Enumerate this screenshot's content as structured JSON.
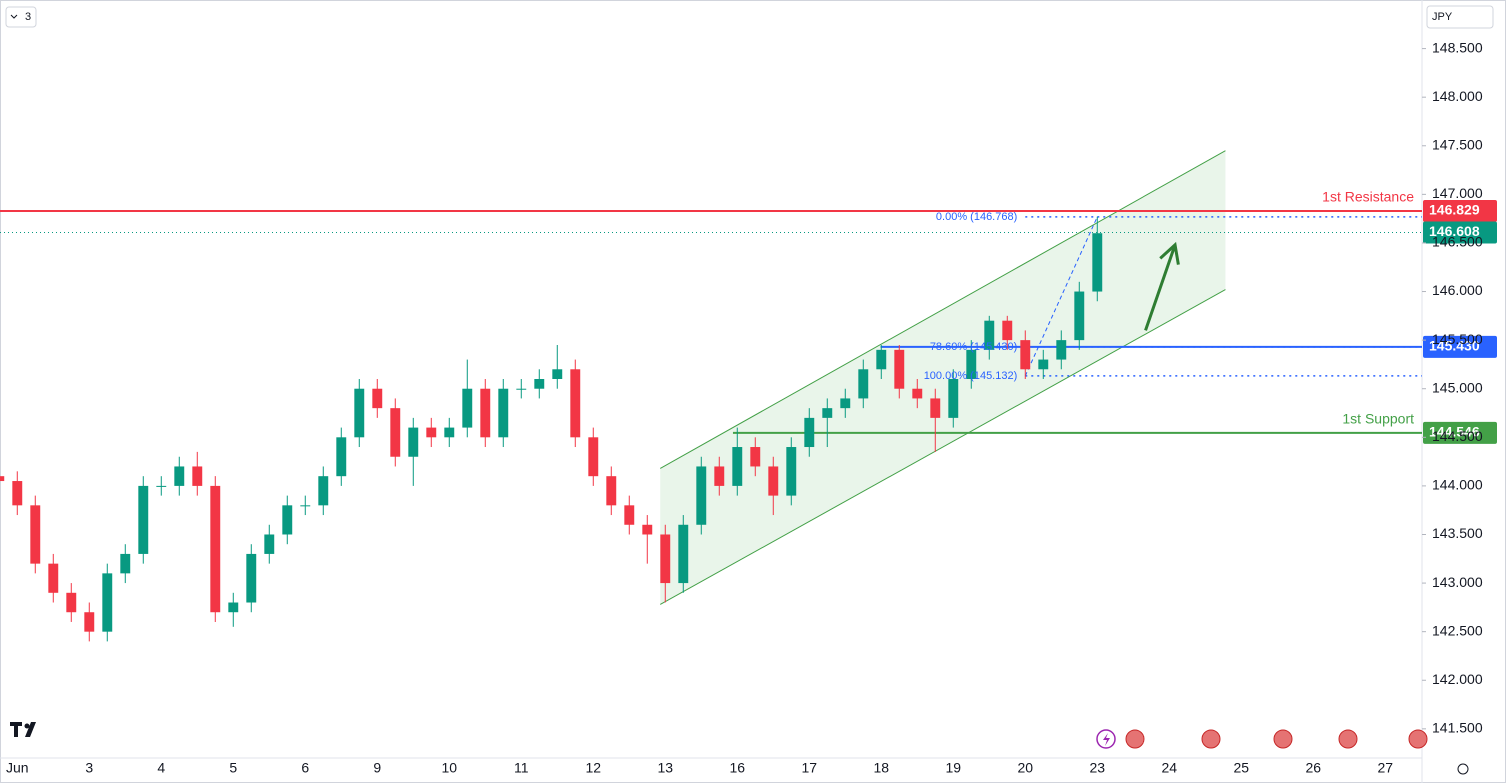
{
  "chart_data": {
    "type": "candlestick",
    "interval": "3",
    "currency": "JPY",
    "categories": [
      "Jun",
      "3",
      "4",
      "5",
      "6",
      "9",
      "10",
      "11",
      "12",
      "13",
      "16",
      "17",
      "18",
      "19",
      "20",
      "23",
      "24",
      "25",
      "26",
      "27"
    ],
    "xlim": [
      -0.24,
      19.51
    ],
    "ylim": [
      141.2,
      149.0
    ],
    "yticks": [
      {
        "value": 141.5,
        "label": "141.500"
      },
      {
        "value": 142,
        "label": "142.000"
      },
      {
        "value": 142.5,
        "label": "142.500"
      },
      {
        "value": 143,
        "label": "143.000"
      },
      {
        "value": 143.5,
        "label": "143.500"
      },
      {
        "value": 144,
        "label": "144.000"
      },
      {
        "value": 144.5,
        "label": "144.500"
      },
      {
        "value": 145,
        "label": "145.000"
      },
      {
        "value": 145.5,
        "label": "145.500"
      },
      {
        "value": 146,
        "label": "146.000"
      },
      {
        "value": 146.5,
        "label": "146.500"
      },
      {
        "value": 147,
        "label": "147.000"
      },
      {
        "value": 147.5,
        "label": "147.500"
      },
      {
        "value": 148,
        "label": "148.000"
      },
      {
        "value": 148.5,
        "label": "148.500"
      }
    ],
    "up_color": "#089981",
    "down_color": "#f23645",
    "candles": {
      "x": [
        -0.25,
        0,
        0.25,
        0.5,
        0.75,
        1,
        1.25,
        1.5,
        1.75,
        2,
        2.25,
        2.5,
        2.75,
        3,
        3.25,
        3.5,
        3.75,
        4,
        4.25,
        4.5,
        4.75,
        5,
        5.25,
        5.5,
        5.75,
        6,
        6.25,
        6.5,
        6.75,
        7,
        7.25,
        7.5,
        7.75,
        8,
        8.25,
        8.5,
        8.75,
        9,
        9.25,
        9.5,
        9.75,
        10,
        10.25,
        10.5,
        10.75,
        11,
        11.25,
        11.5,
        11.75,
        12,
        12.25,
        12.5,
        12.75,
        13,
        13.25,
        13.5,
        13.75,
        14,
        14.25,
        14.5,
        14.75,
        15
      ],
      "open": [
        144.1,
        144.05,
        143.8,
        143.2,
        142.9,
        142.7,
        142.5,
        143.1,
        143.3,
        144.0,
        144.0,
        144.2,
        144.0,
        142.7,
        142.8,
        143.3,
        143.5,
        143.8,
        143.8,
        144.1,
        144.5,
        145.0,
        144.8,
        144.3,
        144.6,
        144.5,
        144.6,
        145.0,
        144.5,
        145.0,
        145.0,
        145.1,
        145.2,
        144.5,
        144.1,
        143.8,
        143.6,
        143.5,
        143.0,
        143.6,
        144.2,
        144.0,
        144.4,
        144.2,
        143.9,
        144.4,
        144.7,
        144.8,
        144.9,
        145.2,
        145.4,
        145.0,
        144.9,
        144.7,
        145.1,
        145.4,
        145.7,
        145.5,
        145.2,
        145.3,
        145.5,
        146.0
      ],
      "high": [
        144.2,
        144.15,
        143.9,
        143.3,
        143.0,
        142.8,
        143.2,
        143.4,
        144.1,
        144.1,
        144.3,
        144.35,
        144.1,
        142.9,
        143.4,
        143.6,
        143.9,
        143.9,
        144.2,
        144.6,
        145.1,
        145.1,
        144.9,
        144.7,
        144.7,
        144.7,
        145.3,
        145.1,
        145.1,
        145.1,
        145.2,
        145.45,
        145.3,
        144.6,
        144.2,
        143.9,
        143.7,
        143.6,
        143.7,
        144.3,
        144.3,
        144.6,
        144.5,
        144.3,
        144.5,
        144.8,
        144.9,
        145.0,
        145.3,
        145.45,
        145.45,
        145.1,
        145.0,
        145.2,
        145.5,
        145.75,
        145.75,
        145.6,
        145.4,
        145.6,
        146.1,
        146.77
      ],
      "low": [
        143.95,
        143.7,
        143.1,
        142.8,
        142.6,
        142.4,
        142.4,
        143.0,
        143.2,
        143.9,
        143.9,
        143.9,
        142.6,
        142.55,
        142.7,
        143.2,
        143.4,
        143.7,
        143.7,
        144.0,
        144.4,
        144.7,
        144.2,
        144.0,
        144.4,
        144.4,
        144.5,
        144.4,
        144.4,
        144.9,
        144.9,
        145.0,
        144.4,
        144.0,
        143.7,
        143.5,
        143.2,
        142.8,
        142.9,
        143.5,
        143.9,
        143.9,
        144.1,
        143.7,
        143.8,
        144.3,
        144.4,
        144.7,
        144.8,
        145.1,
        144.9,
        144.8,
        144.35,
        144.6,
        145.0,
        145.3,
        145.4,
        145.1,
        145.1,
        145.2,
        145.4,
        145.9
      ],
      "close": [
        144.05,
        143.8,
        143.2,
        142.9,
        142.7,
        142.5,
        143.1,
        143.3,
        144.0,
        144.0,
        144.2,
        144.0,
        142.7,
        142.8,
        143.3,
        143.5,
        143.8,
        143.8,
        144.1,
        144.5,
        145.0,
        144.8,
        144.3,
        144.6,
        144.5,
        144.6,
        145.0,
        144.5,
        145.0,
        145.0,
        145.1,
        145.2,
        144.5,
        144.1,
        143.8,
        143.6,
        143.5,
        143.0,
        143.6,
        144.2,
        144.0,
        144.4,
        144.2,
        143.9,
        144.4,
        144.7,
        144.8,
        144.9,
        145.2,
        145.4,
        145.0,
        144.9,
        144.7,
        145.1,
        145.4,
        145.7,
        145.5,
        145.2,
        145.3,
        145.5,
        146.0,
        146.6
      ]
    },
    "levels": [
      {
        "name": "1st Resistance",
        "value": 146.829,
        "label": "146.829",
        "color": "#f23645",
        "start": -0.24
      },
      {
        "name": "1st Support",
        "value": 144.546,
        "label": "144.546",
        "color": "#43a047",
        "start": 9.94
      },
      {
        "value": 145.43,
        "label": "145.430",
        "color": "#2962ff",
        "start": 11.99
      }
    ],
    "last_price": {
      "value": 146.608,
      "label": "146.608",
      "color": "#089981"
    },
    "fib": [
      {
        "label": "0.00% (146.768)",
        "value": 146.768
      },
      {
        "label": "78.60% (145.430)",
        "value": 145.43
      },
      {
        "label": "100.00% (145.132)",
        "value": 145.132
      }
    ],
    "fib_start": 14.0,
    "channel": {
      "upper": [
        [
          8.93,
          144.18
        ],
        [
          16.78,
          147.45
        ]
      ],
      "lower": [
        [
          8.93,
          142.78
        ],
        [
          16.78,
          146.02
        ]
      ]
    },
    "arrow": [
      [
        15.67,
        145.6
      ],
      [
        16.08,
        146.48
      ]
    ]
  }
}
